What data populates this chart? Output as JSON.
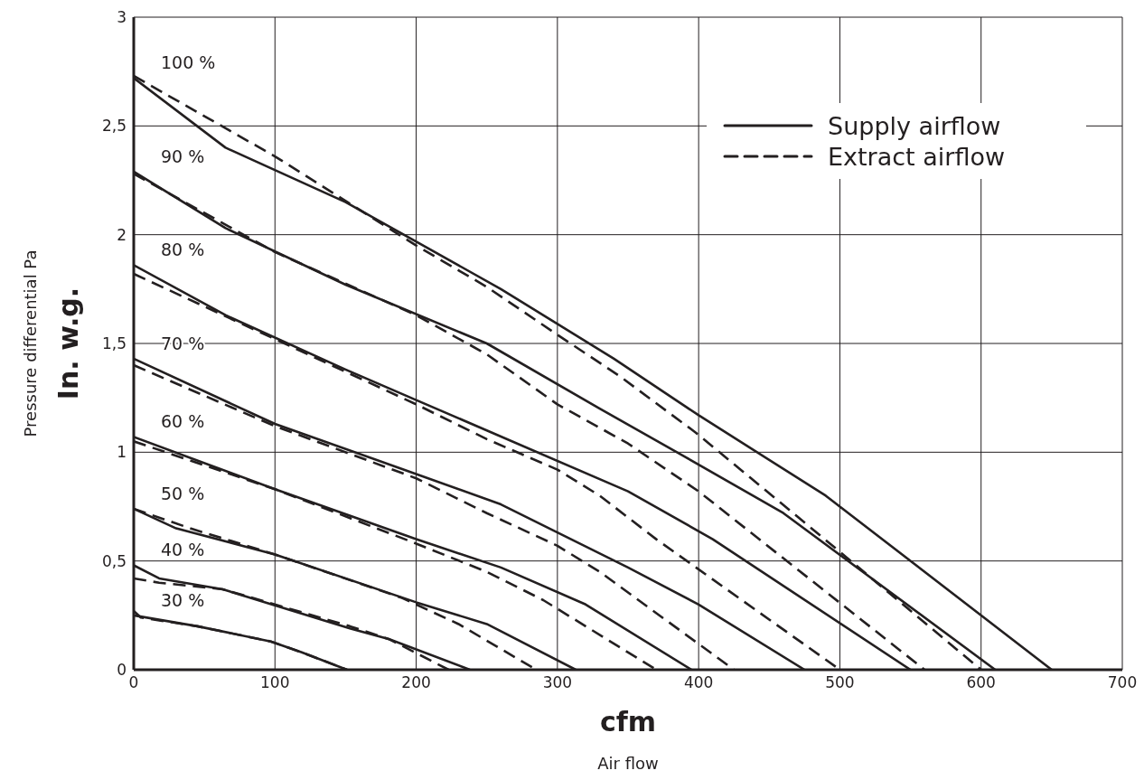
{
  "chart_data": {
    "type": "line",
    "xlabel": "cfm",
    "ylabel": "In. w.g.",
    "xlim": [
      0,
      700
    ],
    "ylim": [
      0,
      3
    ],
    "xticks": [
      0,
      100,
      200,
      300,
      400,
      500,
      600,
      700
    ],
    "yticks": [
      0,
      {
        "value": 0.5,
        "label": "0,5"
      },
      1,
      {
        "value": 1.5,
        "label": "1,5"
      },
      2,
      {
        "value": 2.5,
        "label": "2,5"
      },
      3
    ],
    "grid": true,
    "legend": "top right",
    "marker": "none",
    "series": [
      {
        "name": "Supply airflow",
        "color": "#231f20",
        "line_style": "solid",
        "x": [
          0,
          65,
          150,
          260,
          340,
          400,
          490,
          650
        ],
        "values": [
          2.72,
          2.4,
          2.15,
          1.75,
          1.43,
          1.17,
          0.8,
          0
        ]
      },
      {
        "name": "Extract airflow",
        "color": "#231f20",
        "line_style": "dashed",
        "x": [
          0,
          100,
          200,
          250,
          300,
          344,
          398,
          493,
          600
        ],
        "values": [
          2.73,
          2.36,
          1.95,
          1.76,
          1.54,
          1.35,
          1.09,
          0.58,
          0
        ]
      },
      {
        "color": "#231f20",
        "line_style": "solid",
        "x": [
          0,
          65,
          150,
          250,
          330,
          390,
          460,
          610
        ],
        "values": [
          2.29,
          2.03,
          1.77,
          1.5,
          1.2,
          0.98,
          0.72,
          0
        ]
      },
      {
        "color": "#231f20",
        "line_style": "dashed",
        "x": [
          0,
          100,
          200,
          250,
          300,
          350,
          400,
          560
        ],
        "values": [
          2.28,
          1.92,
          1.63,
          1.45,
          1.22,
          1.04,
          0.82,
          0
        ]
      },
      {
        "color": "#231f20",
        "line_style": "solid",
        "x": [
          0,
          65,
          150,
          200,
          250,
          350,
          410,
          550
        ],
        "values": [
          1.86,
          1.63,
          1.38,
          1.24,
          1.1,
          0.82,
          0.6,
          0
        ]
      },
      {
        "color": "#231f20",
        "line_style": "dashed",
        "x": [
          0,
          100,
          200,
          250,
          300,
          330,
          370,
          500
        ],
        "values": [
          1.82,
          1.52,
          1.22,
          1.06,
          0.92,
          0.8,
          0.6,
          0
        ]
      },
      {
        "color": "#231f20",
        "line_style": "solid",
        "x": [
          0,
          100,
          200,
          260,
          350,
          400,
          475
        ],
        "values": [
          1.43,
          1.13,
          0.9,
          0.76,
          0.47,
          0.3,
          0
        ]
      },
      {
        "color": "#231f20",
        "line_style": "dashed",
        "x": [
          0,
          100,
          200,
          250,
          300,
          330,
          425
        ],
        "values": [
          1.4,
          1.12,
          0.88,
          0.72,
          0.57,
          0.45,
          0
        ]
      },
      {
        "color": "#231f20",
        "line_style": "solid",
        "x": [
          0,
          100,
          200,
          260,
          320,
          395
        ],
        "values": [
          1.07,
          0.83,
          0.6,
          0.47,
          0.3,
          0
        ]
      },
      {
        "color": "#231f20",
        "line_style": "dashed",
        "x": [
          0,
          100,
          200,
          250,
          290,
          370
        ],
        "values": [
          1.05,
          0.83,
          0.58,
          0.45,
          0.32,
          0
        ]
      },
      {
        "color": "#231f20",
        "line_style": "solid",
        "x": [
          0,
          30,
          100,
          200,
          250,
          313
        ],
        "values": [
          0.74,
          0.65,
          0.53,
          0.31,
          0.21,
          0
        ]
      },
      {
        "color": "#231f20",
        "line_style": "dashed",
        "x": [
          0,
          40,
          100,
          190,
          230,
          285
        ],
        "values": [
          0.74,
          0.65,
          0.53,
          0.33,
          0.21,
          0
        ]
      },
      {
        "color": "#231f20",
        "line_style": "solid",
        "x": [
          0,
          18,
          63,
          153,
          181,
          238
        ],
        "values": [
          0.48,
          0.42,
          0.37,
          0.19,
          0.14,
          0
        ]
      },
      {
        "color": "#231f20",
        "line_style": "dashed",
        "x": [
          0,
          18,
          63,
          153,
          181,
          223
        ],
        "values": [
          0.42,
          0.4,
          0.37,
          0.2,
          0.14,
          0
        ]
      },
      {
        "color": "#231f20",
        "line_style": "solid",
        "x": [
          0,
          45,
          97,
          119,
          151
        ],
        "values": [
          0.25,
          0.2,
          0.13,
          0.08,
          0
        ]
      },
      {
        "color": "#231f20",
        "line_style": "dashed",
        "x": [
          0,
          5,
          45,
          97,
          119,
          151
        ],
        "values": [
          0.27,
          0.24,
          0.2,
          0.13,
          0.08,
          0
        ]
      }
    ],
    "annotations": [
      "100 %",
      "90 %",
      "80 %",
      "70 %",
      "60 %",
      "50 %",
      "40 %",
      "30 %",
      "Air flow",
      "Pressure differential Pa"
    ]
  }
}
